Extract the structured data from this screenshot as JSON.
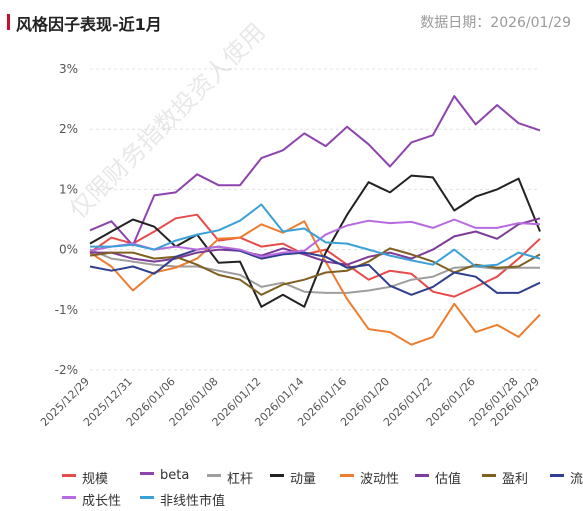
{
  "header": {
    "title": "风格因子表现-近1月",
    "date_label": "数据日期：2026/01/29"
  },
  "watermark": "仅限财务指数投资人使用",
  "colors": {
    "accent": "#c8102e",
    "grid": "#e0e0e0"
  },
  "chart_data": {
    "type": "line",
    "x": [
      "2025/12/29",
      "2025/12/30",
      "2025/12/31",
      "2026/01/05",
      "2026/01/06",
      "2026/01/07",
      "2026/01/08",
      "2026/01/09",
      "2026/01/12",
      "2026/01/13",
      "2026/01/14",
      "2026/01/15",
      "2026/01/16",
      "2026/01/19",
      "2026/01/20",
      "2026/01/21",
      "2026/01/22",
      "2026/01/23",
      "2026/01/26",
      "2026/01/27",
      "2026/01/28",
      "2026/01/29"
    ],
    "x_tick_labels": [
      "2025/12/29",
      "2025/12/31",
      "2026/01/06",
      "2026/01/08",
      "2026/01/12",
      "2026/01/14",
      "2026/01/16",
      "2026/01/20",
      "2026/01/22",
      "2026/01/26",
      "2026/01/28",
      "2026/01/29"
    ],
    "x_tick_indices": [
      0,
      2,
      4,
      6,
      8,
      10,
      12,
      14,
      16,
      18,
      20,
      21
    ],
    "y_ticks": [
      "3%",
      "2%",
      "1%",
      "0%",
      "-1%",
      "-2%"
    ],
    "ylim": [
      -2,
      3
    ],
    "grid": true,
    "legend_position": "bottom",
    "series": [
      {
        "name": "规模",
        "color": "#e74c4c",
        "values": [
          -0.05,
          0.2,
          0.1,
          0.3,
          0.52,
          0.58,
          0.15,
          0.2,
          0.05,
          0.1,
          -0.08,
          0.0,
          -0.25,
          -0.5,
          -0.35,
          -0.4,
          -0.7,
          -0.78,
          -0.62,
          -0.45,
          -0.15,
          0.18
        ]
      },
      {
        "name": "beta",
        "color": "#8e44ad",
        "values": [
          0.32,
          0.47,
          0.07,
          0.9,
          0.95,
          1.25,
          1.07,
          1.07,
          1.52,
          1.65,
          1.93,
          1.72,
          2.04,
          1.75,
          1.38,
          1.78,
          1.9,
          2.55,
          2.08,
          2.4,
          2.1,
          1.98
        ]
      },
      {
        "name": "杠杆",
        "color": "#9e9e9e",
        "values": [
          0.0,
          -0.15,
          -0.2,
          -0.25,
          -0.28,
          -0.28,
          -0.35,
          -0.42,
          -0.62,
          -0.55,
          -0.7,
          -0.72,
          -0.72,
          -0.68,
          -0.62,
          -0.5,
          -0.45,
          -0.3,
          -0.28,
          -0.32,
          -0.3,
          -0.3
        ]
      },
      {
        "name": "动量",
        "color": "#222222",
        "values": [
          0.1,
          0.3,
          0.5,
          0.38,
          0.05,
          0.25,
          -0.22,
          -0.2,
          -0.95,
          -0.75,
          -0.95,
          -0.05,
          0.58,
          1.12,
          0.95,
          1.23,
          1.2,
          0.65,
          0.88,
          1.0,
          1.18,
          0.3
        ]
      },
      {
        "name": "波动性",
        "color": "#ed7d31",
        "values": [
          -0.05,
          -0.28,
          -0.68,
          -0.38,
          -0.3,
          -0.15,
          0.18,
          0.2,
          0.42,
          0.28,
          0.47,
          -0.2,
          -0.82,
          -1.32,
          -1.37,
          -1.58,
          -1.45,
          -0.9,
          -1.37,
          -1.25,
          -1.45,
          -1.08
        ]
      },
      {
        "name": "估值",
        "color": "#7d3c98",
        "values": [
          -0.05,
          -0.05,
          -0.15,
          -0.2,
          -0.15,
          -0.05,
          0.0,
          -0.02,
          -0.1,
          0.02,
          -0.08,
          -0.2,
          -0.25,
          -0.12,
          -0.05,
          -0.15,
          0.0,
          0.22,
          0.3,
          0.18,
          0.42,
          0.52
        ]
      },
      {
        "name": "盈利",
        "color": "#7f6020",
        "values": [
          -0.1,
          -0.05,
          -0.05,
          -0.15,
          -0.12,
          -0.25,
          -0.42,
          -0.5,
          -0.75,
          -0.58,
          -0.5,
          -0.38,
          -0.35,
          -0.2,
          0.02,
          -0.08,
          -0.2,
          -0.38,
          -0.25,
          -0.3,
          -0.28,
          -0.08
        ]
      },
      {
        "name": "流动性",
        "color": "#2f3e8f",
        "values": [
          -0.28,
          -0.35,
          -0.28,
          -0.4,
          -0.12,
          0.0,
          0.05,
          -0.02,
          -0.15,
          -0.08,
          -0.05,
          -0.12,
          -0.3,
          -0.25,
          -0.6,
          -0.75,
          -0.62,
          -0.38,
          -0.45,
          -0.72,
          -0.72,
          -0.55
        ]
      },
      {
        "name": "成长性",
        "color": "#b86bdf",
        "values": [
          -0.02,
          0.05,
          0.1,
          0.0,
          0.05,
          0.0,
          0.05,
          0.0,
          -0.12,
          -0.05,
          -0.02,
          0.25,
          0.4,
          0.48,
          0.44,
          0.46,
          0.36,
          0.5,
          0.36,
          0.36,
          0.44,
          0.42
        ]
      },
      {
        "name": "非线性市值",
        "color": "#3aa0d8",
        "values": [
          0.05,
          0.05,
          0.08,
          0.0,
          0.15,
          0.25,
          0.32,
          0.48,
          0.75,
          0.3,
          0.35,
          0.12,
          0.1,
          0.0,
          -0.1,
          -0.18,
          -0.25,
          0.0,
          -0.28,
          -0.25,
          -0.05,
          -0.15
        ]
      }
    ]
  }
}
